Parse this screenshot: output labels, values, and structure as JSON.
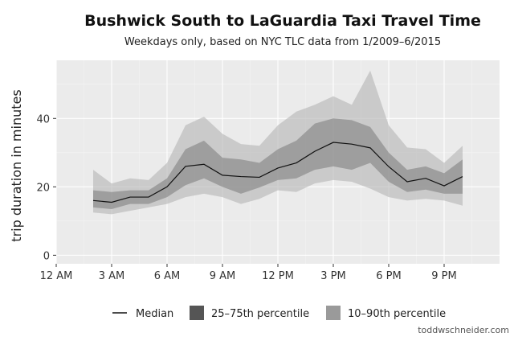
{
  "colors": {
    "panel": "#ebebeb",
    "grid_major": "#ffffff",
    "grid_minor": "#f4f4f4",
    "band_10_90": "#b8b8b8",
    "band_25_75": "#7a7a7a",
    "median": "#111111"
  },
  "chart_data": {
    "type": "area",
    "title": "Bushwick South to LaGuardia Taxi Travel Time",
    "subtitle": "Weekdays only, based on NYC TLC data from 1/2009–6/2015",
    "ylabel": "trip duration in minutes",
    "xlabel": "",
    "x_range": [
      0,
      24
    ],
    "y_range": [
      -2.5,
      57
    ],
    "x_ticks": [
      0,
      3,
      6,
      9,
      12,
      15,
      18,
      21
    ],
    "x_tick_labels": [
      "12 AM",
      "3 AM",
      "6 AM",
      "9 AM",
      "12 PM",
      "3 PM",
      "6 PM",
      "9 PM"
    ],
    "y_ticks": [
      0,
      20,
      40
    ],
    "y_tick_labels": [
      "0",
      "20",
      "40"
    ],
    "grid": true,
    "x": [
      2,
      3,
      4,
      5,
      6,
      7,
      8,
      9,
      10,
      11,
      12,
      13,
      14,
      15,
      16,
      17,
      18,
      19,
      20,
      21,
      22
    ],
    "series": [
      {
        "name": "Median",
        "median": [
          16,
          15.5,
          17,
          17,
          20,
          26,
          26.6,
          23.4,
          23,
          22.8,
          25.5,
          27,
          30.4,
          33,
          32.5,
          31.4,
          25.9,
          21.5,
          22.5,
          20.3,
          23
        ]
      },
      {
        "name": "25–75th percentile",
        "low": [
          14,
          13.5,
          15,
          15,
          17,
          20.5,
          22.5,
          20,
          18,
          19.8,
          22,
          22.5,
          25,
          26,
          25,
          27,
          21.5,
          18.5,
          19.2,
          18,
          18
        ],
        "high": [
          19,
          18.5,
          19,
          19,
          22.5,
          31,
          33.5,
          28.5,
          28,
          27,
          31,
          33.5,
          38.5,
          40,
          39.5,
          37.5,
          30,
          25,
          26,
          24,
          28
        ]
      },
      {
        "name": "10–90th percentile",
        "low": [
          12.5,
          12,
          13,
          14,
          15,
          17,
          18,
          17,
          15,
          16.5,
          19,
          18.5,
          21,
          22,
          21.5,
          19.5,
          17,
          16,
          16.5,
          16,
          14.5
        ],
        "high": [
          25,
          21,
          22.5,
          22,
          27,
          38,
          40.5,
          35.5,
          32.5,
          32,
          38,
          42,
          44,
          46.5,
          44,
          54,
          38,
          31.5,
          31,
          27,
          32
        ]
      }
    ]
  },
  "legend": {
    "median_label": "Median",
    "iqr_label": "25–75th percentile",
    "p10_90_label": "10–90th percentile"
  },
  "credit": "toddwschneider.com"
}
